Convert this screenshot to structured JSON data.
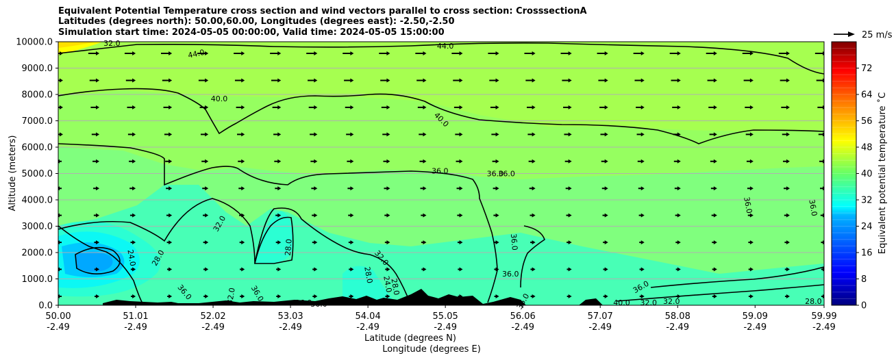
{
  "chart_data": {
    "type": "contourf",
    "title_lines": [
      "Equivalent Potential Temperature cross section and wind vectors parallel to cross section: CrosssectionA",
      "Latitudes (degrees north): 50.00,60.00, Longitudes (degrees east): -2.50,-2.50",
      "Simulation start time: 2024-05-05 00:00:00, Valid time: 2024-05-05 15:00:00"
    ],
    "ylabel": "Altitude (meters)",
    "xlabel_lat": "Latitude (degrees N)",
    "xlabel_lon": "Longitude (degrees E)",
    "ylim": [
      0,
      10000
    ],
    "y_ticks": [
      "0.0",
      "1000.0",
      "2000.0",
      "3000.0",
      "4000.0",
      "5000.0",
      "6000.0",
      "7000.0",
      "8000.0",
      "9000.0",
      "10000.0"
    ],
    "y_tick_values": [
      0,
      1000,
      2000,
      3000,
      4000,
      5000,
      6000,
      7000,
      8000,
      9000,
      10000
    ],
    "xlim": [
      50.0,
      59.99
    ],
    "x_tick_values": [
      50.0,
      51.01,
      52.02,
      53.03,
      54.04,
      55.05,
      56.06,
      57.07,
      58.08,
      59.09,
      59.99
    ],
    "x_ticks_lat": [
      "50.00",
      "51.01",
      "52.02",
      "53.03",
      "54.04",
      "55.05",
      "56.06",
      "57.07",
      "58.08",
      "59.09",
      "59.99"
    ],
    "x_ticks_lon": [
      "-2.49",
      "-2.49",
      "-2.49",
      "-2.49",
      "-2.49",
      "-2.49",
      "-2.49",
      "-2.49",
      "-2.49",
      "-2.49",
      "-2.49"
    ],
    "grid": "horizontal",
    "colorbar": {
      "label": "Equivalent potential temperature ˚C",
      "range": [
        0,
        80
      ],
      "ticks": [
        "0",
        "8",
        "16",
        "24",
        "32",
        "40",
        "48",
        "56",
        "64",
        "72"
      ],
      "tick_values": [
        0,
        8,
        16,
        24,
        32,
        40,
        48,
        56,
        64,
        72
      ],
      "colormap": "jet"
    },
    "quiver_key": "25 m/s",
    "contour_labels": [
      {
        "text": "32.0",
        "lat": 50.7,
        "alt": 9950
      },
      {
        "text": "44.0",
        "lat": 51.8,
        "alt": 9550,
        "rot": -12
      },
      {
        "text": "44.0",
        "lat": 55.05,
        "alt": 9850
      },
      {
        "text": "40.0",
        "lat": 52.1,
        "alt": 7850
      },
      {
        "text": "40.0",
        "lat": 55.0,
        "alt": 7050,
        "rot": 45
      },
      {
        "text": "36.0",
        "lat": 54.98,
        "alt": 5100
      },
      {
        "text": "36.0",
        "lat": 55.7,
        "alt": 5000
      },
      {
        "text": "36.0",
        "lat": 55.85,
        "alt": 5000
      },
      {
        "text": "36.0",
        "lat": 59.0,
        "alt": 3800,
        "rot": 80
      },
      {
        "text": "36.0",
        "lat": 59.85,
        "alt": 3700,
        "rot": 80
      },
      {
        "text": "36.0",
        "lat": 55.95,
        "alt": 2400,
        "rot": 85
      },
      {
        "text": "36.0",
        "lat": 55.9,
        "alt": 1200
      },
      {
        "text": "32.0",
        "lat": 52.1,
        "alt": 3100,
        "rot": -60
      },
      {
        "text": "32.0",
        "lat": 54.22,
        "alt": 1800,
        "rot": 50
      },
      {
        "text": "28.0",
        "lat": 53.0,
        "alt": 2200,
        "rot": -85
      },
      {
        "text": "28.0",
        "lat": 51.3,
        "alt": 1800,
        "rot": -60
      },
      {
        "text": "24.0",
        "lat": 50.96,
        "alt": 1800,
        "rot": 80
      },
      {
        "text": "28.0",
        "lat": 54.05,
        "alt": 1150,
        "rot": 80
      },
      {
        "text": "24.0",
        "lat": 54.3,
        "alt": 800,
        "rot": 80
      },
      {
        "text": "28.0",
        "lat": 54.4,
        "alt": 700,
        "rot": 80
      },
      {
        "text": "36.0",
        "lat": 51.65,
        "alt": 500,
        "rot": 50
      },
      {
        "text": "32.0",
        "lat": 52.25,
        "alt": 350,
        "rot": -80
      },
      {
        "text": "36.0",
        "lat": 52.6,
        "alt": 450,
        "rot": 60
      },
      {
        "text": "36.0",
        "lat": 53.2,
        "alt": 100
      },
      {
        "text": "36.0",
        "lat": 53.4,
        "alt": 50
      },
      {
        "text": "36.0",
        "lat": 56.06,
        "alt": 150,
        "rot": -60
      },
      {
        "text": "36.0",
        "lat": 57.6,
        "alt": 700,
        "rot": -30
      },
      {
        "text": "32.0",
        "lat": 57.7,
        "alt": 100
      },
      {
        "text": "40.0",
        "lat": 57.35,
        "alt": 100
      },
      {
        "text": "32.0",
        "lat": 58.0,
        "alt": 150
      },
      {
        "text": "28.0",
        "lat": 59.85,
        "alt": 150
      }
    ]
  }
}
